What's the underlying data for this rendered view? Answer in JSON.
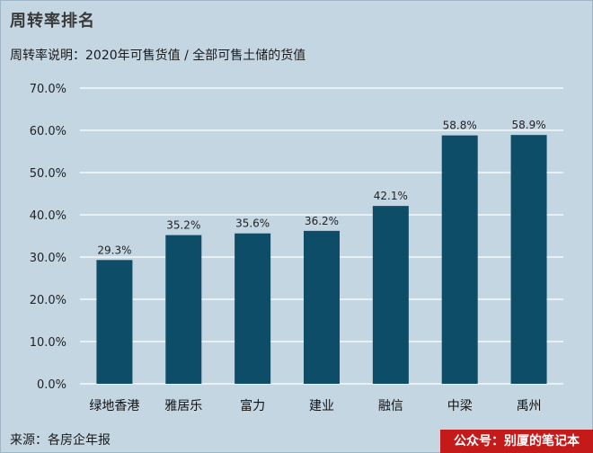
{
  "header": {
    "title": "周转率排名",
    "subtitle": "周转率说明：2020年可售货值 / 全部可售土储的货值"
  },
  "footer": {
    "source": "来源：各房企年报",
    "badge": "公众号：别厦的笔记本"
  },
  "colors": {
    "background": "#c5d6e3",
    "bar": "#0e4d67",
    "gridline": "#ffffff",
    "badge": "#c41a1a"
  },
  "chart_data": {
    "type": "bar",
    "title": "",
    "xlabel": "",
    "ylabel": "",
    "categories": [
      "绿地香港",
      "雅居乐",
      "富力",
      "建业",
      "融信",
      "中梁",
      "禹州"
    ],
    "values": [
      29.3,
      35.2,
      35.6,
      36.2,
      42.1,
      58.8,
      58.9
    ],
    "data_labels": [
      "29.3%",
      "35.2%",
      "35.6%",
      "36.2%",
      "42.1%",
      "58.8%",
      "58.9%"
    ],
    "ylim": [
      0,
      70
    ],
    "yticks": [
      0,
      10,
      20,
      30,
      40,
      50,
      60,
      70
    ],
    "ytick_labels": [
      "0.0%",
      "10.0%",
      "20.0%",
      "30.0%",
      "40.0%",
      "50.0%",
      "60.0%",
      "70.0%"
    ],
    "grid": true,
    "legend": "none"
  }
}
